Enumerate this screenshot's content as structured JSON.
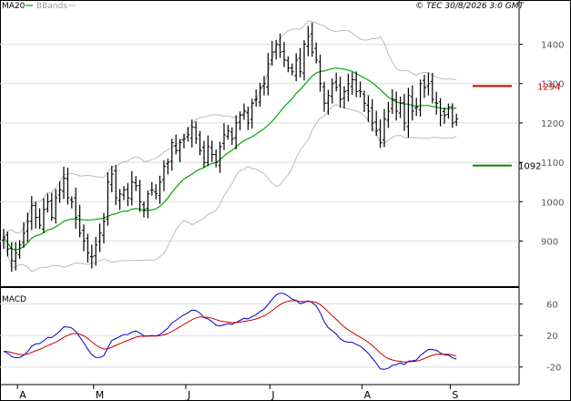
{
  "header": {
    "legend_ma": "MA20",
    "legend_bbands": "BBands",
    "copyright": "© TEC 30/8/2026 3:0 GMT"
  },
  "macd_panel": {
    "label": "MACD"
  },
  "levels": {
    "resistance": {
      "value": 1294,
      "label": "1294",
      "color": "#cc0000"
    },
    "support": {
      "value": 1092,
      "label": "1092",
      "color": "#008800"
    }
  },
  "colors": {
    "ma": "#00aa00",
    "bbands": "#bbbbbb",
    "bars": "#000000",
    "macd": "#0000cc",
    "signal": "#cc0000"
  },
  "chart_data": [
    {
      "type": "ohlc",
      "title": "",
      "yticks": [
        900,
        1000,
        1100,
        1200,
        1300,
        1400
      ],
      "ytick_labels": [
        "900",
        "1000",
        "1100",
        "1200",
        "1300",
        "1400"
      ],
      "ylim": [
        790,
        1480
      ],
      "xticks": [
        {
          "label": "A",
          "index": 3
        },
        {
          "label": "M",
          "index": 22
        },
        {
          "label": "J",
          "index": 45
        },
        {
          "label": "J",
          "index": 66
        },
        {
          "label": "A",
          "index": 89
        },
        {
          "label": "S",
          "index": 111
        }
      ],
      "n_periods": 114,
      "grid": true,
      "close": [
        910,
        880,
        850,
        870,
        890,
        920,
        950,
        990,
        960,
        940,
        980,
        1000,
        960,
        1010,
        1030,
        1060,
        1010,
        1000,
        960,
        920,
        900,
        870,
        860,
        890,
        920,
        950,
        1050,
        1070,
        1010,
        1020,
        1030,
        1010,
        1050,
        1040,
        1000,
        980,
        1020,
        1030,
        1020,
        1050,
        1090,
        1100,
        1150,
        1130,
        1150,
        1160,
        1170,
        1190,
        1160,
        1130,
        1100,
        1140,
        1120,
        1100,
        1140,
        1170,
        1180,
        1160,
        1200,
        1220,
        1230,
        1200,
        1250,
        1260,
        1290,
        1300,
        1350,
        1380,
        1400,
        1380,
        1360,
        1340,
        1330,
        1360,
        1330,
        1400,
        1420,
        1380,
        1360,
        1300,
        1250,
        1270,
        1300,
        1290,
        1260,
        1280,
        1300,
        1310,
        1280,
        1280,
        1250,
        1230,
        1200,
        1180,
        1150,
        1210,
        1230,
        1260,
        1230,
        1250,
        1200,
        1270,
        1230,
        1240,
        1300,
        1290,
        1300,
        1260,
        1250,
        1220,
        1220,
        1240,
        1200,
        1210
      ]
    },
    {
      "type": "line",
      "title": "",
      "yticks": [
        -20,
        20,
        60
      ],
      "ytick_labels": [
        "-20",
        "20",
        "60"
      ],
      "ylim": [
        -40,
        78
      ],
      "grid": true,
      "series": [
        {
          "name": ""
        },
        {
          "name": ""
        }
      ]
    }
  ]
}
